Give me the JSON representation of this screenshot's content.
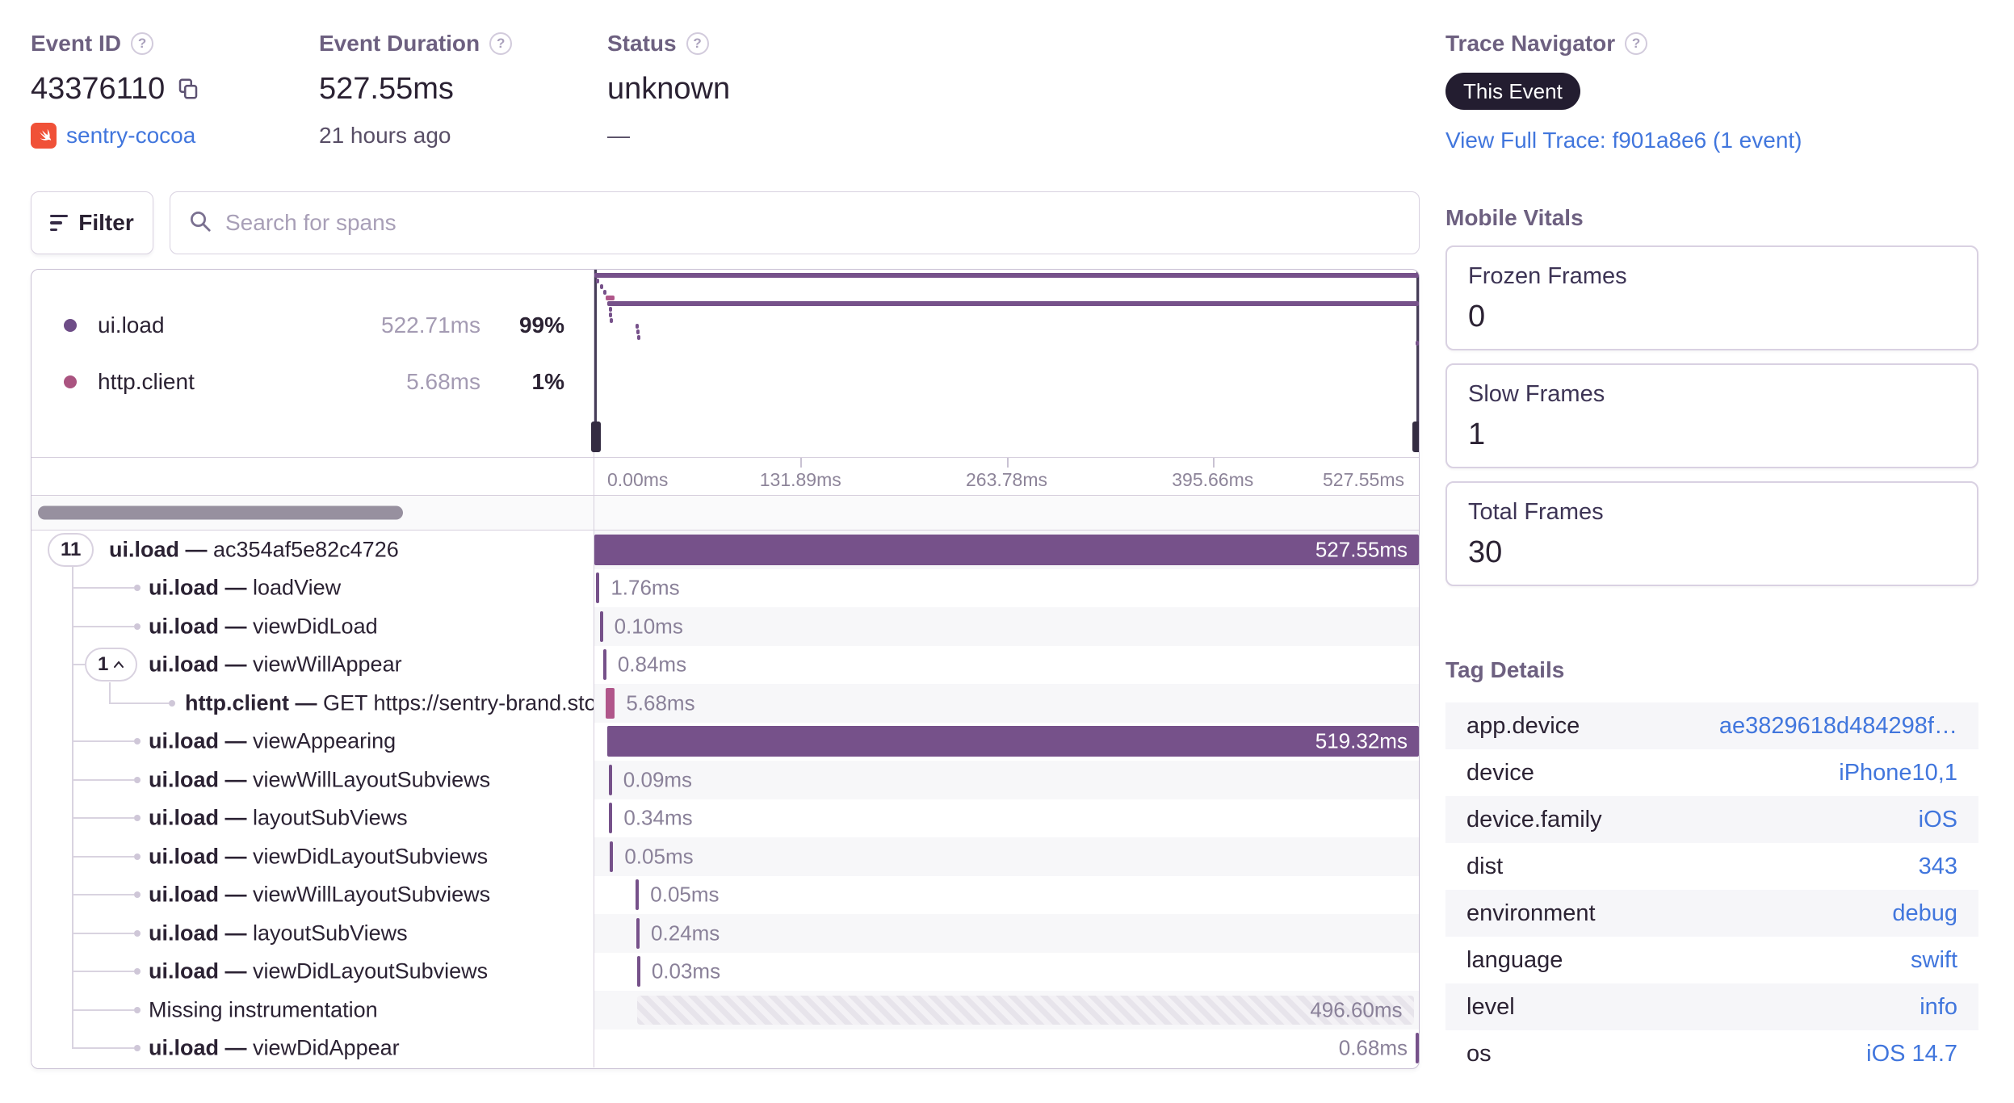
{
  "header": {
    "event_id": {
      "label": "Event ID",
      "value": "43376110",
      "project": "sentry-cocoa"
    },
    "event_duration": {
      "label": "Event Duration",
      "value": "527.55ms",
      "ago": "21 hours ago"
    },
    "status": {
      "label": "Status",
      "value": "unknown",
      "sub": "—"
    },
    "trace_navigator": {
      "label": "Trace Navigator",
      "badge": "This Event",
      "link": "View Full Trace: f901a8e6 (1 event)"
    }
  },
  "toolbar": {
    "filter_label": "Filter",
    "search_placeholder": "Search for spans"
  },
  "legend": {
    "items": [
      {
        "name": "ui.load",
        "duration": "522.71ms",
        "pct": "99%",
        "color": "#6e4d87"
      },
      {
        "name": "http.client",
        "duration": "5.68ms",
        "pct": "1%",
        "color": "#aa5480"
      }
    ]
  },
  "minimap": {
    "ruler": [
      "0.00ms",
      "131.89ms",
      "263.78ms",
      "395.66ms",
      "527.55ms"
    ]
  },
  "spans": {
    "total_ms": 527.55,
    "op_separator": "—",
    "rows": [
      {
        "badge": "11",
        "op": "ui.load",
        "desc": "ac354af5e82c4726",
        "depth": 0,
        "type": "ui",
        "start_ms": 0,
        "duration_ms": 527.55,
        "duration_label": "527.55ms",
        "label_pos": "inside"
      },
      {
        "op": "ui.load",
        "desc": "loadView",
        "depth": 1,
        "type": "ui",
        "start_ms": 1.2,
        "duration_ms": 1.76,
        "duration_label": "1.76ms",
        "label_pos": "after"
      },
      {
        "op": "ui.load",
        "desc": "viewDidLoad",
        "depth": 1,
        "type": "ui",
        "start_ms": 3.4,
        "duration_ms": 0.1,
        "duration_label": "0.10ms",
        "label_pos": "after"
      },
      {
        "badge": "1",
        "badge_chevron": true,
        "op": "ui.load",
        "desc": "viewWillAppear",
        "depth": 1,
        "type": "ui",
        "start_ms": 5.6,
        "duration_ms": 0.84,
        "duration_label": "0.84ms",
        "label_pos": "after"
      },
      {
        "op": "http.client",
        "desc": "GET https://sentry-brand.stora",
        "depth": 2,
        "type": "http",
        "start_ms": 7.4,
        "duration_ms": 5.68,
        "duration_label": "5.68ms",
        "label_pos": "after"
      },
      {
        "op": "ui.load",
        "desc": "viewAppearing",
        "depth": 1,
        "type": "ui",
        "start_ms": 8.2,
        "duration_ms": 519.32,
        "duration_label": "519.32ms",
        "label_pos": "inside"
      },
      {
        "op": "ui.load",
        "desc": "viewWillLayoutSubviews",
        "depth": 1,
        "type": "ui",
        "start_ms": 9.2,
        "duration_ms": 0.09,
        "duration_label": "0.09ms",
        "label_pos": "after"
      },
      {
        "op": "ui.load",
        "desc": "layoutSubViews",
        "depth": 1,
        "type": "ui",
        "start_ms": 9.5,
        "duration_ms": 0.34,
        "duration_label": "0.34ms",
        "label_pos": "after"
      },
      {
        "op": "ui.load",
        "desc": "viewDidLayoutSubviews",
        "depth": 1,
        "type": "ui",
        "start_ms": 10.0,
        "duration_ms": 0.05,
        "duration_label": "0.05ms",
        "label_pos": "after"
      },
      {
        "op": "ui.load",
        "desc": "viewWillLayoutSubviews",
        "depth": 1,
        "type": "ui",
        "start_ms": 26.5,
        "duration_ms": 0.05,
        "duration_label": "0.05ms",
        "label_pos": "after"
      },
      {
        "op": "ui.load",
        "desc": "layoutSubViews",
        "depth": 1,
        "type": "ui",
        "start_ms": 26.9,
        "duration_ms": 0.24,
        "duration_label": "0.24ms",
        "label_pos": "after"
      },
      {
        "op": "ui.load",
        "desc": "viewDidLayoutSubviews",
        "depth": 1,
        "type": "ui",
        "start_ms": 27.3,
        "duration_ms": 0.03,
        "duration_label": "0.03ms",
        "label_pos": "after"
      },
      {
        "desc": "Missing instrumentation",
        "depth": 1,
        "type": "missing",
        "start_ms": 27.6,
        "duration_ms": 496.6,
        "duration_label": "496.60ms",
        "label_pos": "inside-muted"
      },
      {
        "op": "ui.load",
        "desc": "viewDidAppear",
        "depth": 1,
        "type": "ui",
        "start_ms": 526.8,
        "duration_ms": 0.68,
        "duration_label": "0.68ms",
        "label_pos": "before"
      }
    ]
  },
  "mobile_vitals": {
    "title": "Mobile Vitals",
    "cards": [
      {
        "label": "Frozen Frames",
        "value": "0"
      },
      {
        "label": "Slow Frames",
        "value": "1"
      },
      {
        "label": "Total Frames",
        "value": "30"
      }
    ]
  },
  "tag_details": {
    "title": "Tag Details",
    "rows": [
      {
        "key": "app.device",
        "value": "ae3829618d484298f…"
      },
      {
        "key": "device",
        "value": "iPhone10,1"
      },
      {
        "key": "device.family",
        "value": "iOS"
      },
      {
        "key": "dist",
        "value": "343"
      },
      {
        "key": "environment",
        "value": "debug"
      },
      {
        "key": "language",
        "value": "swift"
      },
      {
        "key": "level",
        "value": "info"
      },
      {
        "key": "os",
        "value": "iOS 14.7"
      }
    ]
  },
  "colors": {
    "span_ui": "#76518a",
    "span_http": "#b0568a",
    "link_blue": "#4176dd",
    "badge_dark": "#231d30",
    "swift_orange": "#f05138"
  }
}
